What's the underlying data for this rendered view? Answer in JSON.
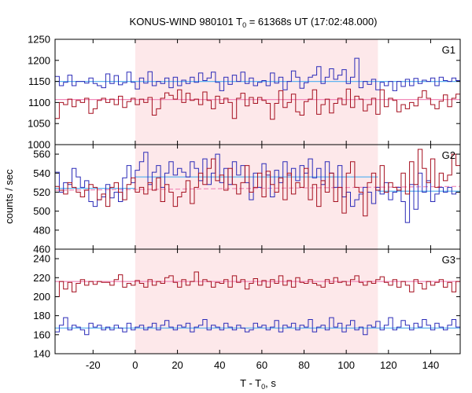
{
  "chart_data": {
    "type": "line",
    "title": "KONUS-WIND 980101 T",
    "title_sub": "0",
    "title_rest": " = 61368s UT (17:02:48.000)",
    "xlabel": "T - T",
    "xlabel_sub": "0",
    "xlabel_rest": ", s",
    "ylabel": "counts / sec",
    "xlim": [
      -38,
      154
    ],
    "xticks": [
      -20,
      0,
      20,
      40,
      60,
      80,
      100,
      120,
      140
    ],
    "highlight": {
      "x0": 0,
      "x1": 115,
      "color": "#fde8ea"
    },
    "colors": {
      "blue": "#2b2bb8",
      "red": "#a50f1f",
      "blue_fit": "#5fb4f0",
      "red_fit": "#f28ab9"
    },
    "panels": [
      {
        "name": "G1",
        "ylim": [
          1000,
          1250
        ],
        "yticks": [
          1000,
          1050,
          1100,
          1150,
          1200,
          1250
        ],
        "fits": [
          {
            "series": "blue",
            "y0": 1150,
            "y1": 1150
          },
          {
            "series": "red",
            "y0": 1107,
            "y1": 1107
          }
        ],
        "series": [
          {
            "color": "blue",
            "values": [
              1162,
              1140,
              1148,
              1165,
              1140,
              1150,
              1150,
              1146,
              1158,
              1145,
              1140,
              1135,
              1168,
              1145,
              1164,
              1142,
              1147,
              1172,
              1148,
              1132,
              1158,
              1146,
              1173,
              1140,
              1150,
              1145,
              1158,
              1135,
              1160,
              1140,
              1153,
              1145,
              1160,
              1148,
              1170,
              1152,
              1158,
              1172,
              1148,
              1128,
              1160,
              1143,
              1165,
              1150,
              1172,
              1145,
              1158,
              1140,
              1148,
              1152,
              1140,
              1170,
              1146,
              1160,
              1130,
              1150,
              1175,
              1160,
              1134,
              1147,
              1160,
              1165,
              1185,
              1145,
              1160,
              1180,
              1155,
              1165,
              1178,
              1145,
              1160,
              1205,
              1135,
              1150,
              1143,
              1155,
              1130,
              1148,
              1140,
              1150,
              1128,
              1150,
              1138,
              1155,
              1140,
              1157,
              1145,
              1153,
              1150,
              1158,
              1140,
              1160,
              1152,
              1150,
              1158,
              1152
            ]
          },
          {
            "color": "red",
            "values": [
              1062,
              1100,
              1095,
              1108,
              1090,
              1105,
              1100,
              1110,
              1074,
              1085,
              1105,
              1110,
              1100,
              1108,
              1095,
              1115,
              1088,
              1102,
              1110,
              1095,
              1108,
              1100,
              1112,
              1070,
              1085,
              1110,
              1123,
              1117,
              1108,
              1130,
              1100,
              1122,
              1105,
              1108,
              1095,
              1125,
              1105,
              1085,
              1115,
              1098,
              1110,
              1100,
              1062,
              1110,
              1122,
              1092,
              1112,
              1098,
              1112,
              1105,
              1098,
              1060,
              1098,
              1128,
              1088,
              1100,
              1120,
              1078,
              1070,
              1102,
              1108,
              1130,
              1072,
              1095,
              1108,
              1075,
              1098,
              1110,
              1095,
              1132,
              1088,
              1115,
              1108,
              1080,
              1095,
              1110,
              1072,
              1130,
              1090,
              1110,
              1105,
              1078,
              1095,
              1085,
              1100,
              1092,
              1112,
              1128,
              1110,
              1095,
              1085,
              1103,
              1118,
              1090,
              1110,
              1120
            ]
          }
        ]
      },
      {
        "name": "G2",
        "ylim": [
          460,
          570
        ],
        "yticks": [
          460,
          480,
          500,
          520,
          540,
          560
        ],
        "fits": [
          {
            "series": "blue",
            "y0": 536,
            "y1": 536,
            "x0": 0,
            "x1": 115
          },
          {
            "series": "blue",
            "y0": 524,
            "y1": 524,
            "x0": -38,
            "x1": 0
          },
          {
            "series": "blue",
            "y0": 521,
            "y1": 521,
            "x0": 115,
            "x1": 154
          },
          {
            "series": "red",
            "y0": 522,
            "y1": 526
          }
        ],
        "series": [
          {
            "color": "blue",
            "values": [
              541,
              520,
              530,
              528,
              545,
              536,
              525,
              532,
              510,
              505,
              512,
              515,
              528,
              514,
              520,
              510,
              535,
              548,
              530,
              543,
              552,
              562,
              528,
              541,
              548,
              525,
              540,
              552,
              538,
              545,
              541,
              536,
              552,
              545,
              532,
              555,
              528,
              540,
              560,
              530,
              545,
              528,
              552,
              538,
              548,
              530,
              512,
              540,
              525,
              550,
              538,
              515,
              543,
              530,
              552,
              538,
              545,
              532,
              548,
              540,
              555,
              535,
              545,
              528,
              552,
              540,
              525,
              548,
              515,
              520,
              505,
              512,
              518,
              525,
              520,
              508,
              525,
              518,
              530,
              512,
              520,
              525,
              510,
              488,
              528,
              502,
              540,
              520,
              532,
              510,
              518,
              525,
              520,
              525,
              518,
              520
            ]
          },
          {
            "color": "red",
            "values": [
              526,
              522,
              518,
              530,
              525,
              520,
              515,
              522,
              528,
              525,
              512,
              518,
              505,
              525,
              530,
              520,
              512,
              528,
              535,
              520,
              525,
              518,
              530,
              522,
              535,
              510,
              528,
              520,
              505,
              515,
              520,
              532,
              508,
              525,
              540,
              528,
              545,
              555,
              532,
              538,
              522,
              545,
              528,
              518,
              530,
              548,
              520,
              525,
              540,
              515,
              542,
              528,
              520,
              535,
              512,
              540,
              518,
              530,
              525,
              545,
              512,
              528,
              505,
              532,
              520,
              540,
              510,
              525,
              498,
              540,
              552,
              525,
              520,
              495,
              530,
              540,
              522,
              548,
              520,
              530,
              525,
              522,
              540,
              518,
              552,
              528,
              565,
              545,
              530,
              555,
              525,
              540,
              532,
              538,
              560,
              548
            ]
          }
        ]
      },
      {
        "name": "G3",
        "ylim": [
          140,
          250
        ],
        "yticks": [
          140,
          160,
          180,
          200,
          220,
          240
        ],
        "fits": [
          {
            "series": "red",
            "y0": 216,
            "y1": 216
          },
          {
            "series": "blue",
            "y0": 167,
            "y1": 167
          }
        ],
        "series": [
          {
            "color": "red",
            "values": [
              200,
              216,
              208,
              215,
              205,
              214,
              218,
              212,
              216,
              213,
              216,
              215,
              215,
              212,
              218,
              223,
              210,
              214,
              212,
              217,
              214,
              210,
              218,
              212,
              216,
              214,
              220,
              222,
              215,
              210,
              218,
              212,
              216,
              226,
              212,
              218,
              216,
              210,
              215,
              214,
              218,
              210,
              222,
              215,
              218,
              208,
              214,
              219,
              212,
              217,
              210,
              218,
              214,
              222,
              212,
              217,
              210,
              220,
              215,
              214,
              218,
              214,
              212,
              210,
              218,
              214,
              220,
              215,
              216,
              212,
              218,
              222,
              215,
              212,
              216,
              214,
              218,
              221,
              215,
              212,
              218,
              210,
              216,
              212,
              205,
              218,
              214,
              208,
              216,
              212,
              215,
              218,
              210,
              215,
              205,
              216
            ]
          },
          {
            "color": "blue",
            "values": [
              163,
              170,
              178,
              165,
              170,
              168,
              165,
              160,
              172,
              168,
              170,
              165,
              168,
              165,
              170,
              167,
              163,
              172,
              165,
              168,
              170,
              165,
              168,
              172,
              165,
              170,
              175,
              168,
              165,
              170,
              168,
              172,
              163,
              168,
              170,
              176,
              165,
              170,
              168,
              165,
              172,
              168,
              165,
              170,
              167,
              163,
              165,
              172,
              168,
              170,
              165,
              168,
              175,
              163,
              170,
              168,
              172,
              165,
              170,
              168,
              176,
              163,
              168,
              170,
              165,
              178,
              168,
              172,
              163,
              170,
              175,
              165,
              168,
              160,
              170,
              168,
              174,
              165,
              170,
              178,
              165,
              168,
              175,
              170,
              165,
              172,
              168,
              176,
              170,
              165,
              172,
              168,
              165,
              170,
              176,
              168
            ]
          }
        ]
      }
    ]
  }
}
